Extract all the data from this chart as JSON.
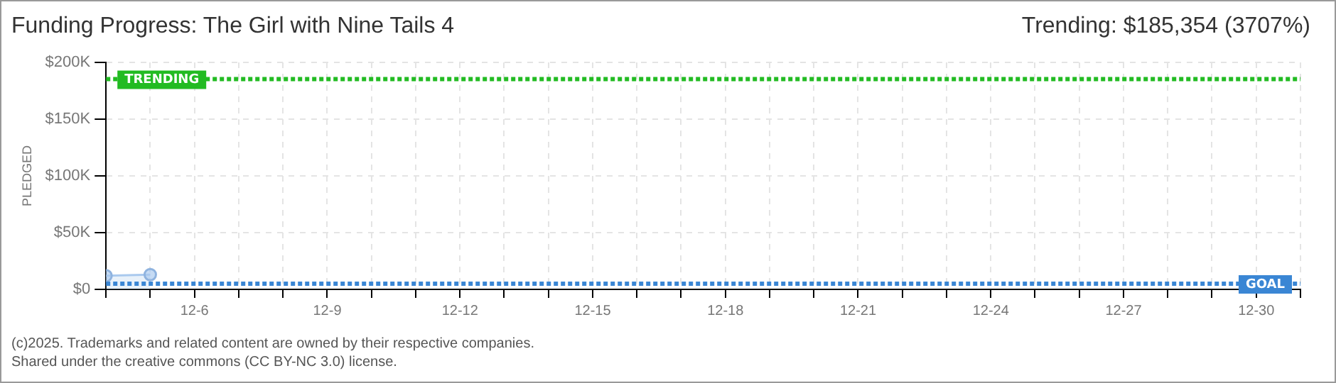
{
  "chart_data": {
    "type": "area",
    "title": "Funding Progress: The Girl with Nine Tails 4",
    "subtitle": "Trending: $185,354 (3707%)",
    "ylabel": "PLEDGED",
    "x": [
      "--12-04",
      "--12-05"
    ],
    "series": [
      {
        "color": "#a9c9ee",
        "values": [
          12000,
          13000
        ]
      }
    ],
    "xlim": [
      "--12-04",
      "--12-31"
    ],
    "xticks": [
      {
        "value": "--12-04",
        "label": null
      },
      {
        "value": "--12-05",
        "label": null
      },
      {
        "value": "--12-06",
        "label": "12-6"
      },
      {
        "value": "--12-07",
        "label": null
      },
      {
        "value": "--12-08",
        "label": null
      },
      {
        "value": "--12-09",
        "label": "12-9"
      },
      {
        "value": "--12-10",
        "label": null
      },
      {
        "value": "--12-11",
        "label": null
      },
      {
        "value": "--12-12",
        "label": "12-12"
      },
      {
        "value": "--12-13",
        "label": null
      },
      {
        "value": "--12-14",
        "label": null
      },
      {
        "value": "--12-15",
        "label": "12-15"
      },
      {
        "value": "--12-16",
        "label": null
      },
      {
        "value": "--12-17",
        "label": null
      },
      {
        "value": "--12-18",
        "label": "12-18"
      },
      {
        "value": "--12-19",
        "label": null
      },
      {
        "value": "--12-20",
        "label": null
      },
      {
        "value": "--12-21",
        "label": "12-21"
      },
      {
        "value": "--12-22",
        "label": null
      },
      {
        "value": "--12-23",
        "label": null
      },
      {
        "value": "--12-24",
        "label": "12-24"
      },
      {
        "value": "--12-25",
        "label": null
      },
      {
        "value": "--12-26",
        "label": null
      },
      {
        "value": "--12-27",
        "label": "12-27"
      },
      {
        "value": "--12-28",
        "label": null
      },
      {
        "value": "--12-29",
        "label": null
      },
      {
        "value": "--12-30",
        "label": "12-30"
      },
      {
        "value": "--12-31",
        "label": null
      }
    ],
    "ylim": [
      0,
      200000
    ],
    "yticks": [
      {
        "value": 0,
        "label": "$0"
      },
      {
        "value": 50000,
        "label": "$50K"
      },
      {
        "value": 100000,
        "label": "$100K"
      },
      {
        "value": 150000,
        "label": "$150K"
      },
      {
        "value": 200000,
        "label": "$200K"
      }
    ],
    "ref_lines": [
      {
        "axis": "y",
        "value": 185354,
        "label": "TRENDING",
        "color": "#22bb22",
        "line_style": "dotted"
      },
      {
        "axis": "y",
        "value": 5000,
        "label": "GOAL",
        "color": "#3a86d4",
        "line_style": "dotted"
      }
    ],
    "grid": true,
    "marker": "circle",
    "legend": false,
    "annotations": [
      "(c)2025. Trademarks and related content are owned by their respective companies.",
      "Shared under the creative commons (CC BY-NC 3.0) license."
    ]
  }
}
